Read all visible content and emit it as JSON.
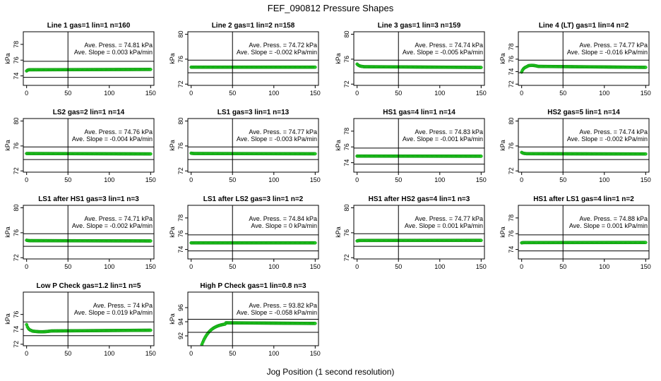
{
  "title": "FEF_090812  Pressure Shapes",
  "xlabel": "Jog Position (1 second resolution)",
  "colors": {
    "points": "#22cc22",
    "point_edge": "#0a8f0a",
    "frame": "#000000"
  },
  "chart_data": [
    {
      "type": "scatter",
      "title": "Line 1 gas=1 lin=1 n=160",
      "ylabel": "kPa",
      "xlim": [
        -4,
        154
      ],
      "ylim": [
        72.8,
        79.6
      ],
      "xticks": [
        0,
        50,
        100,
        150
      ],
      "yticks": [
        74,
        76,
        78
      ],
      "hlines": [
        75.85,
        73.82
      ],
      "vlines": [
        50
      ],
      "annotation": [
        "Ave. Press. = 74.81 kPa",
        "Ave. Slope = 0.003 kPa/min"
      ],
      "series": {
        "start": 74.65,
        "level": 74.8,
        "settle": 3,
        "slope": 0.0003
      }
    },
    {
      "type": "scatter",
      "title": "Line 2 gas=1 lin=2 n=158",
      "ylabel": "kPa",
      "xlim": [
        -4,
        154
      ],
      "ylim": [
        71.8,
        80.4
      ],
      "xticks": [
        0,
        50,
        100,
        150
      ],
      "yticks": [
        72,
        76,
        80
      ],
      "hlines": [
        75.85,
        73.82
      ],
      "vlines": [
        50
      ],
      "annotation": [
        "Ave. Press. = 74.72 kPa",
        "Ave. Slope = -0.002 kPa/min"
      ],
      "series": {
        "start": 74.72,
        "level": 74.72,
        "settle": 1,
        "slope": 0
      }
    },
    {
      "type": "scatter",
      "title": "Line 3 gas=1 lin=3 n=159",
      "ylabel": "kPa",
      "xlim": [
        -4,
        154
      ],
      "ylim": [
        71.8,
        80.4
      ],
      "xticks": [
        0,
        50,
        100,
        150
      ],
      "yticks": [
        72,
        76,
        80
      ],
      "hlines": [
        75.85,
        73.82
      ],
      "vlines": [
        50
      ],
      "annotation": [
        "Ave. Press. = 74.74 kPa",
        "Ave. Slope = -0.005 kPa/min"
      ],
      "series": {
        "start": 75.15,
        "level": 74.74,
        "settle": 8,
        "slope": -0.0008
      }
    },
    {
      "type": "scatter",
      "title": "Line 4 (LT) gas=1 lin=4 n=2",
      "ylabel": "kPa",
      "xlim": [
        -4,
        154
      ],
      "ylim": [
        71.8,
        80.4
      ],
      "xticks": [
        0,
        50,
        100,
        150
      ],
      "yticks": [
        72,
        74,
        76,
        78
      ],
      "hlines": [
        75.85,
        73.82
      ],
      "vlines": [
        50
      ],
      "annotation": [
        "Ave. Press. = 74.77 kPa",
        "Ave. Slope = -0.016 kPa/min"
      ],
      "series": {
        "start": 73.85,
        "level": 74.78,
        "settle": 8,
        "slope": -0.0012,
        "bump": 0.15
      }
    },
    {
      "type": "scatter",
      "title": "LS2 gas=2 lin=1 n=14",
      "ylabel": "kPa",
      "xlim": [
        -4,
        154
      ],
      "ylim": [
        71.8,
        80.4
      ],
      "xticks": [
        0,
        50,
        100,
        150
      ],
      "yticks": [
        72,
        76,
        80
      ],
      "hlines": [
        75.85,
        73.82
      ],
      "vlines": [
        50
      ],
      "annotation": [
        "Ave. Press. = 74.76 kPa",
        "Ave. Slope = -0.004 kPa/min"
      ],
      "series": {
        "start": 74.76,
        "level": 74.76,
        "settle": 1,
        "slope": -0.0004
      }
    },
    {
      "type": "scatter",
      "title": "LS1 gas=3 lin=1 n=13",
      "ylabel": "kPa",
      "xlim": [
        -4,
        154
      ],
      "ylim": [
        71.8,
        80.4
      ],
      "xticks": [
        0,
        50,
        100,
        150
      ],
      "yticks": [
        72,
        76,
        80
      ],
      "hlines": [
        75.85,
        73.82
      ],
      "vlines": [
        50
      ],
      "annotation": [
        "Ave. Press. = 74.77 kPa",
        "Ave. Slope = -0.003 kPa/min"
      ],
      "series": {
        "start": 74.82,
        "level": 74.77,
        "settle": 4,
        "slope": -0.0003
      }
    },
    {
      "type": "scatter",
      "title": "HS1 gas=4 lin=1 n=14",
      "ylabel": "kPa",
      "xlim": [
        -4,
        154
      ],
      "ylim": [
        72.8,
        79.6
      ],
      "xticks": [
        0,
        50,
        100,
        150
      ],
      "yticks": [
        74,
        76,
        78
      ],
      "hlines": [
        75.85,
        73.82
      ],
      "vlines": [
        50
      ],
      "annotation": [
        "Ave. Press. = 74.83 kPa",
        "Ave. Slope = -0.001 kPa/min"
      ],
      "series": {
        "start": 74.83,
        "level": 74.83,
        "settle": 1,
        "slope": -0.0001
      }
    },
    {
      "type": "scatter",
      "title": "HS2 gas=5 lin=1 n=14",
      "ylabel": "kPa",
      "xlim": [
        -4,
        154
      ],
      "ylim": [
        71.8,
        80.4
      ],
      "xticks": [
        0,
        50,
        100,
        150
      ],
      "yticks": [
        72,
        76,
        80
      ],
      "hlines": [
        75.85,
        73.82
      ],
      "vlines": [
        50
      ],
      "annotation": [
        "Ave. Press. = 74.74 kPa",
        "Ave. Slope = -0.002 kPa/min"
      ],
      "series": {
        "start": 74.95,
        "level": 74.74,
        "settle": 6,
        "slope": -0.0003
      }
    },
    {
      "type": "scatter",
      "title": "LS1 after HS1 gas=3 lin=1 n=3",
      "ylabel": "kPa",
      "xlim": [
        -4,
        154
      ],
      "ylim": [
        71.8,
        80.4
      ],
      "xticks": [
        0,
        50,
        100,
        150
      ],
      "yticks": [
        72,
        76,
        80
      ],
      "hlines": [
        75.85,
        73.82
      ],
      "vlines": [
        50
      ],
      "annotation": [
        "Ave. Press. = 74.71 kPa",
        "Ave. Slope = -0.002 kPa/min"
      ],
      "series": {
        "start": 74.78,
        "level": 74.71,
        "settle": 4,
        "slope": -0.0003
      }
    },
    {
      "type": "scatter",
      "title": "LS1 after LS2 gas=3 lin=1 n=2",
      "ylabel": "kPa",
      "xlim": [
        -4,
        154
      ],
      "ylim": [
        72.8,
        79.6
      ],
      "xticks": [
        0,
        50,
        100,
        150
      ],
      "yticks": [
        74,
        76,
        78
      ],
      "hlines": [
        75.85,
        73.82
      ],
      "vlines": [
        50
      ],
      "annotation": [
        "Ave. Press. = 74.84 kPa",
        "Ave. Slope = 0 kPa/min"
      ],
      "series": {
        "start": 74.84,
        "level": 74.84,
        "settle": 1,
        "slope": 0
      }
    },
    {
      "type": "scatter",
      "title": "HS1 after HS2 gas=4 lin=1 n=3",
      "ylabel": "kPa",
      "xlim": [
        -4,
        154
      ],
      "ylim": [
        71.8,
        80.4
      ],
      "xticks": [
        0,
        50,
        100,
        150
      ],
      "yticks": [
        72,
        76,
        80
      ],
      "hlines": [
        75.85,
        73.82
      ],
      "vlines": [
        50
      ],
      "annotation": [
        "Ave. Press. = 74.77 kPa",
        "Ave. Slope = 0.001 kPa/min"
      ],
      "series": {
        "start": 74.7,
        "level": 74.77,
        "settle": 4,
        "slope": 0.0001
      }
    },
    {
      "type": "scatter",
      "title": "HS1 after LS1 gas=4 lin=1 n=2",
      "ylabel": "kPa",
      "xlim": [
        -4,
        154
      ],
      "ylim": [
        72.8,
        79.6
      ],
      "xticks": [
        0,
        50,
        100,
        150
      ],
      "yticks": [
        74,
        76,
        78
      ],
      "hlines": [
        75.85,
        73.82
      ],
      "vlines": [
        50
      ],
      "annotation": [
        "Ave. Press. = 74.88 kPa",
        "Ave. Slope = 0.001 kPa/min"
      ],
      "series": {
        "start": 74.85,
        "level": 74.88,
        "settle": 3,
        "slope": 0.0001
      }
    },
    {
      "type": "scatter",
      "title": "Low P Check gas=1.2 lin=1 n=5",
      "ylabel": "kPa",
      "xlim": [
        -4,
        154
      ],
      "ylim": [
        71.8,
        79.0
      ],
      "xticks": [
        0,
        50,
        100,
        150
      ],
      "yticks": [
        72,
        74,
        76
      ],
      "hlines": [
        75.0,
        73.15
      ],
      "vlines": [
        50
      ],
      "annotation": [
        "Ave. Press. = 74  kPa",
        "Ave. Slope = 0.019 kPa/min"
      ],
      "series": {
        "start": 74.7,
        "level": 73.82,
        "settle": 7,
        "slope": 0.0008,
        "dip": 0.1
      }
    },
    {
      "type": "scatter",
      "title": "High P Check gas=1 lin=0.8 n=3",
      "ylabel": "kPa",
      "xlim": [
        -4,
        154
      ],
      "ylim": [
        90.6,
        98.2
      ],
      "xticks": [
        0,
        50,
        100,
        150
      ],
      "yticks": [
        92,
        94,
        96
      ],
      "hlines": [
        94.35,
        92.5
      ],
      "vlines": [
        50
      ],
      "annotation": [
        "Ave. Press. = 93.82 kPa",
        "Ave. Slope = -0.058 kPa/min"
      ],
      "series": {
        "start": 90.4,
        "level": 93.82,
        "settle": 30,
        "x0": 12,
        "slope": -0.0008
      }
    }
  ]
}
